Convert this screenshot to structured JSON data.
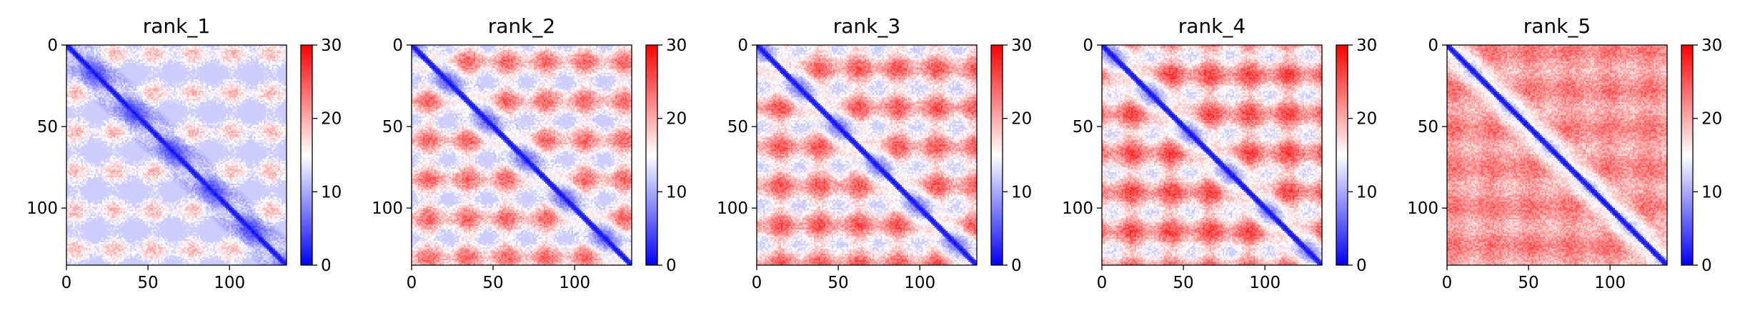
{
  "chart_data": [
    {
      "type": "heatmap",
      "title": "rank_1",
      "n": 135,
      "xlim": [
        0,
        135
      ],
      "ylim": [
        135,
        0
      ],
      "xticks": [
        0,
        50,
        100
      ],
      "yticks": [
        0,
        50,
        100
      ],
      "colorbar": {
        "min": 0,
        "max": 30,
        "ticks": [
          0,
          10,
          20,
          30
        ]
      },
      "colormap": [
        "#0000ff",
        "#ffffff",
        "#ff0000"
      ],
      "pattern": {
        "period": 24,
        "offset": 5,
        "floor": 5,
        "span": 16,
        "contrast": 0.75
      }
    },
    {
      "type": "heatmap",
      "title": "rank_2",
      "n": 135,
      "xlim": [
        0,
        135
      ],
      "ylim": [
        135,
        0
      ],
      "xticks": [
        0,
        50,
        100
      ],
      "yticks": [
        0,
        50,
        100
      ],
      "colorbar": {
        "min": 0,
        "max": 30,
        "ticks": [
          0,
          10,
          20,
          30
        ]
      },
      "colormap": [
        "#0000ff",
        "#ffffff",
        "#ff0000"
      ],
      "pattern": {
        "period": 24,
        "offset": 10,
        "floor": 8,
        "span": 18,
        "contrast": 0.8
      }
    },
    {
      "type": "heatmap",
      "title": "rank_3",
      "n": 135,
      "xlim": [
        0,
        135
      ],
      "ylim": [
        135,
        0
      ],
      "xticks": [
        0,
        50,
        100
      ],
      "yticks": [
        0,
        50,
        100
      ],
      "colorbar": {
        "min": 0,
        "max": 30,
        "ticks": [
          0,
          10,
          20,
          30
        ]
      },
      "colormap": [
        "#0000ff",
        "#ffffff",
        "#ff0000"
      ],
      "pattern": {
        "period": 24,
        "offset": 14,
        "floor": 10,
        "span": 17,
        "contrast": 0.8
      }
    },
    {
      "type": "heatmap",
      "title": "rank_4",
      "n": 135,
      "xlim": [
        0,
        135
      ],
      "ylim": [
        135,
        0
      ],
      "xticks": [
        0,
        50,
        100
      ],
      "yticks": [
        0,
        50,
        100
      ],
      "colorbar": {
        "min": 0,
        "max": 30,
        "ticks": [
          0,
          10,
          20,
          30
        ]
      },
      "colormap": [
        "#0000ff",
        "#ffffff",
        "#ff0000"
      ],
      "pattern": {
        "period": 24,
        "offset": 18,
        "floor": 11,
        "span": 17,
        "contrast": 0.8
      }
    },
    {
      "type": "heatmap",
      "title": "rank_5",
      "n": 135,
      "xlim": [
        0,
        135
      ],
      "ylim": [
        135,
        0
      ],
      "xticks": [
        0,
        50,
        100
      ],
      "yticks": [
        0,
        50,
        100
      ],
      "colorbar": {
        "min": 0,
        "max": 30,
        "ticks": [
          0,
          10,
          20,
          30
        ]
      },
      "colormap": [
        "#0000ff",
        "#ffffff",
        "#ff0000"
      ],
      "pattern": {
        "period": 24,
        "offset": 3,
        "floor": 16,
        "span": 10,
        "contrast": 0.5
      }
    }
  ]
}
